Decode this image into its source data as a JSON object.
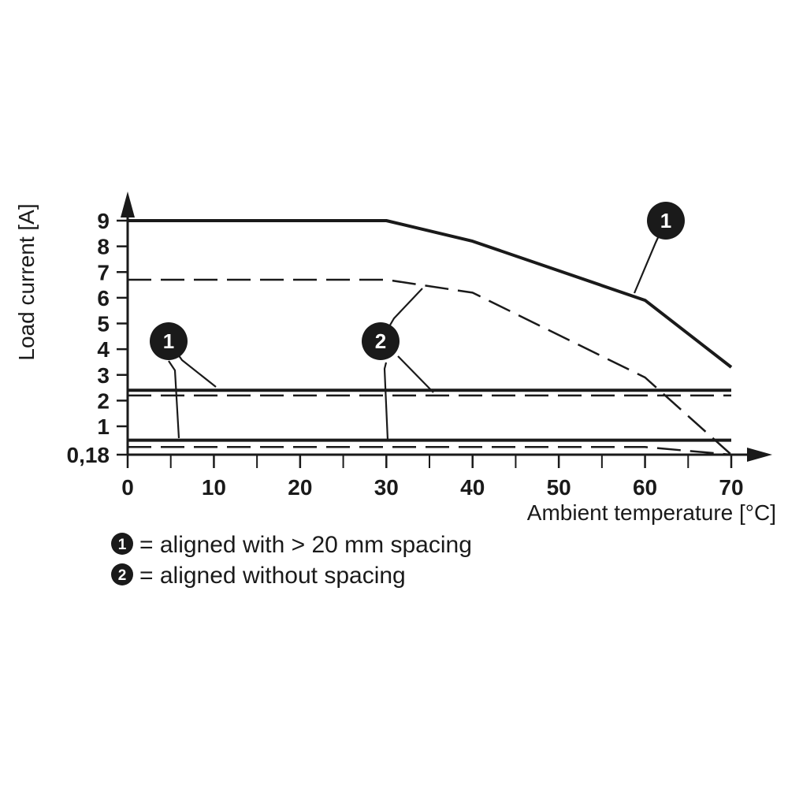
{
  "chart_data": {
    "type": "line",
    "xlabel": "Ambient temperature [°C]",
    "ylabel": "Load current [A]",
    "xlim": [
      0,
      70
    ],
    "ylim": [
      0.18,
      9
    ],
    "x_ticks": [
      "0",
      "10",
      "20",
      "30",
      "40",
      "50",
      "60",
      "70"
    ],
    "y_ticks": [
      {
        "value": 9,
        "label": "9"
      },
      {
        "value": 8,
        "label": "8"
      },
      {
        "value": 7,
        "label": "7"
      },
      {
        "value": 6,
        "label": "6"
      },
      {
        "value": 5,
        "label": "5"
      },
      {
        "value": 4,
        "label": "4"
      },
      {
        "value": 3,
        "label": "3"
      },
      {
        "value": 2,
        "label": "2"
      },
      {
        "value": 1,
        "label": "1"
      },
      {
        "value": 0.18,
        "label": "0,18"
      }
    ],
    "grid": false,
    "series": [
      {
        "key": "1",
        "style": "solid",
        "x": [
          0,
          30,
          40,
          60,
          70
        ],
        "y": [
          9,
          9,
          8.2,
          5.9,
          3.3
        ]
      },
      {
        "key": "2",
        "style": "dashed",
        "x": [
          0,
          30,
          40,
          60,
          70
        ],
        "y": [
          6.7,
          6.7,
          6.2,
          2.9,
          0.18
        ]
      },
      {
        "key": "1",
        "style": "solid",
        "x": [
          0,
          70
        ],
        "y": [
          2.4,
          2.4
        ]
      },
      {
        "key": "2",
        "style": "dashed",
        "x": [
          0,
          60,
          70
        ],
        "y": [
          2.2,
          2.2,
          2.2
        ]
      },
      {
        "key": "1",
        "style": "solid",
        "x": [
          0,
          70
        ],
        "y": [
          0.6,
          0.6
        ]
      },
      {
        "key": "2",
        "style": "dashed",
        "x": [
          0,
          60,
          70
        ],
        "y": [
          0.4,
          0.4,
          0.18
        ]
      }
    ],
    "callouts": [
      {
        "label": "1"
      },
      {
        "label": "2"
      },
      {
        "label": "1"
      }
    ],
    "legend": [
      {
        "key": "1",
        "text": "= aligned with > 20 mm spacing"
      },
      {
        "key": "2",
        "text": "= aligned without spacing"
      }
    ]
  }
}
